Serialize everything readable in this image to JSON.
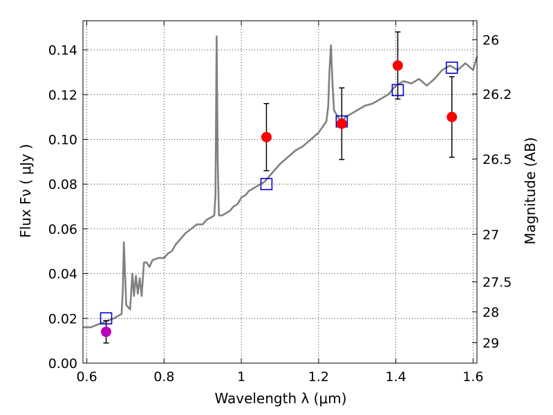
{
  "chart_data": {
    "type": "scatter",
    "xlabel": "Wavelength  λ (μm)",
    "ylabel": "Flux  Fν  ( μJy )",
    "ylabel_right": "Magnitude (AB)",
    "xlim": [
      0.59,
      1.61
    ],
    "ylim": [
      0.0,
      0.153
    ],
    "grid": true,
    "x_ticks": [
      {
        "value": 0.6,
        "label": "0.6"
      },
      {
        "value": 0.8,
        "label": "0.8"
      },
      {
        "value": 1.0,
        "label": "1"
      },
      {
        "value": 1.2,
        "label": "1.2"
      },
      {
        "value": 1.4,
        "label": "1.4"
      },
      {
        "value": 1.6,
        "label": "1.6"
      }
    ],
    "y_ticks": [
      {
        "value": 0.0,
        "label": "0.00"
      },
      {
        "value": 0.02,
        "label": "0.02"
      },
      {
        "value": 0.04,
        "label": "0.04"
      },
      {
        "value": 0.06,
        "label": "0.06"
      },
      {
        "value": 0.08,
        "label": "0.08"
      },
      {
        "value": 0.1,
        "label": "0.10"
      },
      {
        "value": 0.12,
        "label": "0.12"
      },
      {
        "value": 0.14,
        "label": "0.14"
      }
    ],
    "right_ticks": [
      {
        "mag": 26,
        "label": "26"
      },
      {
        "mag": 26.2,
        "label": "26.2"
      },
      {
        "mag": 26.5,
        "label": "26.5"
      },
      {
        "mag": 27,
        "label": "27"
      },
      {
        "mag": 27.5,
        "label": "27.5"
      },
      {
        "mag": 28,
        "label": "28"
      },
      {
        "mag": 29,
        "label": "29"
      }
    ],
    "colors": {
      "spectrum": "#808080",
      "model": "#0000cc",
      "observed": "#ff0000",
      "observed_special": "#bb00bb",
      "errorbar": "#000000"
    },
    "series": [
      {
        "kind": "line",
        "points": [
          [
            0.59,
            0.016
          ],
          [
            0.61,
            0.016
          ],
          [
            0.625,
            0.017
          ],
          [
            0.64,
            0.018
          ],
          [
            0.655,
            0.019
          ],
          [
            0.67,
            0.02
          ],
          [
            0.68,
            0.021
          ],
          [
            0.69,
            0.022
          ],
          [
            0.693,
            0.032
          ],
          [
            0.696,
            0.054
          ],
          [
            0.699,
            0.04
          ],
          [
            0.702,
            0.026
          ],
          [
            0.707,
            0.025
          ],
          [
            0.712,
            0.024
          ],
          [
            0.718,
            0.04
          ],
          [
            0.722,
            0.03
          ],
          [
            0.727,
            0.039
          ],
          [
            0.732,
            0.031
          ],
          [
            0.737,
            0.038
          ],
          [
            0.742,
            0.03
          ],
          [
            0.748,
            0.045
          ],
          [
            0.755,
            0.045
          ],
          [
            0.762,
            0.043
          ],
          [
            0.77,
            0.046
          ],
          [
            0.785,
            0.047
          ],
          [
            0.8,
            0.047
          ],
          [
            0.81,
            0.049
          ],
          [
            0.82,
            0.05
          ],
          [
            0.83,
            0.053
          ],
          [
            0.84,
            0.055
          ],
          [
            0.855,
            0.058
          ],
          [
            0.87,
            0.06
          ],
          [
            0.885,
            0.062
          ],
          [
            0.9,
            0.062
          ],
          [
            0.91,
            0.064
          ],
          [
            0.92,
            0.065
          ],
          [
            0.93,
            0.066
          ],
          [
            0.933,
            0.075
          ],
          [
            0.936,
            0.146
          ],
          [
            0.939,
            0.09
          ],
          [
            0.942,
            0.066
          ],
          [
            0.95,
            0.066
          ],
          [
            0.96,
            0.067
          ],
          [
            0.97,
            0.068
          ],
          [
            0.98,
            0.07
          ],
          [
            0.99,
            0.071
          ],
          [
            1.0,
            0.074
          ],
          [
            1.01,
            0.075
          ],
          [
            1.02,
            0.077
          ],
          [
            1.03,
            0.078
          ],
          [
            1.04,
            0.079
          ],
          [
            1.06,
            0.081
          ],
          [
            1.08,
            0.085
          ],
          [
            1.1,
            0.089
          ],
          [
            1.12,
            0.092
          ],
          [
            1.14,
            0.095
          ],
          [
            1.16,
            0.097
          ],
          [
            1.18,
            0.1
          ],
          [
            1.2,
            0.103
          ],
          [
            1.22,
            0.108
          ],
          [
            1.225,
            0.115
          ],
          [
            1.228,
            0.13
          ],
          [
            1.232,
            0.142
          ],
          [
            1.236,
            0.125
          ],
          [
            1.24,
            0.113
          ],
          [
            1.25,
            0.11
          ],
          [
            1.26,
            0.108
          ],
          [
            1.27,
            0.11
          ],
          [
            1.28,
            0.111
          ],
          [
            1.3,
            0.113
          ],
          [
            1.32,
            0.115
          ],
          [
            1.34,
            0.116
          ],
          [
            1.36,
            0.118
          ],
          [
            1.38,
            0.12
          ],
          [
            1.4,
            0.124
          ],
          [
            1.42,
            0.126
          ],
          [
            1.44,
            0.125
          ],
          [
            1.46,
            0.127
          ],
          [
            1.48,
            0.124
          ],
          [
            1.5,
            0.127
          ],
          [
            1.52,
            0.131
          ],
          [
            1.54,
            0.133
          ],
          [
            1.56,
            0.131
          ],
          [
            1.58,
            0.134
          ],
          [
            1.6,
            0.131
          ],
          [
            1.61,
            0.137
          ]
        ]
      },
      {
        "kind": "model_points",
        "points": [
          [
            0.65,
            0.02
          ],
          [
            1.065,
            0.08
          ],
          [
            1.26,
            0.108
          ],
          [
            1.405,
            0.122
          ],
          [
            1.545,
            0.132
          ]
        ]
      },
      {
        "kind": "observed_points",
        "points": [
          {
            "x": 0.65,
            "y": 0.014,
            "yerr": 0.005,
            "special": true
          },
          {
            "x": 1.065,
            "y": 0.101,
            "yerr": 0.015
          },
          {
            "x": 1.26,
            "y": 0.107,
            "yerr": 0.016
          },
          {
            "x": 1.405,
            "y": 0.133,
            "yerr": 0.015
          },
          {
            "x": 1.545,
            "y": 0.11,
            "yerr": 0.018
          }
        ]
      }
    ]
  }
}
